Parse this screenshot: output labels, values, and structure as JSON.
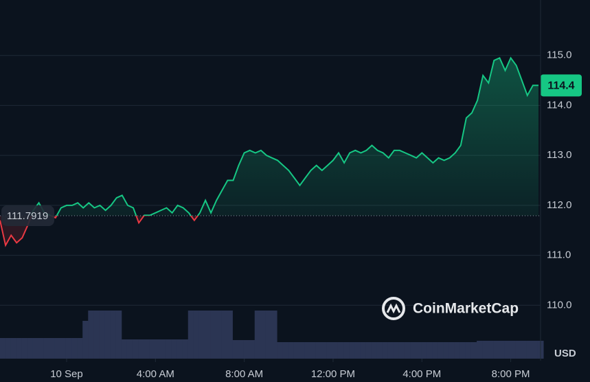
{
  "chart_data": {
    "type": "line",
    "baseline": 111.7919,
    "series": [
      {
        "name": "Price",
        "color_up": "#16c784",
        "color_down": "#ea3943",
        "values": [
          111.7,
          111.2,
          111.4,
          111.25,
          111.35,
          111.6,
          111.9,
          112.05,
          111.85,
          111.8,
          111.75,
          111.95,
          112.0,
          112.0,
          112.05,
          111.95,
          112.05,
          111.95,
          112.0,
          111.9,
          112.0,
          112.15,
          112.2,
          112.0,
          111.95,
          111.65,
          111.8,
          111.8,
          111.85,
          111.9,
          111.95,
          111.85,
          112.0,
          111.95,
          111.85,
          111.7,
          111.85,
          112.1,
          111.85,
          112.1,
          112.3,
          112.5,
          112.5,
          112.8,
          113.05,
          113.1,
          113.05,
          113.1,
          113.0,
          112.95,
          112.9,
          112.8,
          112.7,
          112.55,
          112.4,
          112.55,
          112.7,
          112.8,
          112.7,
          112.8,
          112.9,
          113.05,
          112.85,
          113.05,
          113.1,
          113.05,
          113.1,
          113.2,
          113.1,
          113.05,
          112.95,
          113.1,
          113.1,
          113.05,
          113.0,
          112.95,
          113.05,
          112.95,
          112.85,
          112.95,
          112.9,
          112.95,
          113.05,
          113.2,
          113.75,
          113.85,
          114.1,
          114.6,
          114.45,
          114.9,
          114.95,
          114.7,
          114.95,
          114.8,
          114.5,
          114.2,
          114.4,
          114.4
        ]
      }
    ],
    "volume": {
      "color": "#2b3553",
      "values": [
        30,
        30,
        30,
        30,
        30,
        30,
        30,
        30,
        30,
        30,
        30,
        30,
        30,
        30,
        30,
        55,
        70,
        70,
        70,
        70,
        70,
        70,
        28,
        28,
        28,
        28,
        28,
        28,
        28,
        28,
        28,
        28,
        28,
        28,
        70,
        70,
        70,
        70,
        70,
        70,
        70,
        70,
        27,
        27,
        27,
        27,
        70,
        70,
        70,
        70,
        24,
        24,
        24,
        24,
        24,
        24,
        24,
        24,
        24,
        24,
        24,
        24,
        24,
        24,
        24,
        24,
        24,
        24,
        24,
        24,
        24,
        24,
        24,
        24,
        24,
        24,
        24,
        24,
        24,
        24,
        24,
        24,
        24,
        24,
        24,
        24,
        26,
        26,
        26,
        26,
        26,
        26,
        26,
        26,
        26,
        26,
        26,
        26
      ]
    },
    "volume_lim": [
      0,
      100
    ],
    "xlim": [
      0,
      97
    ],
    "xticks": [
      {
        "value": 12,
        "label": "10 Sep"
      },
      {
        "value": 28,
        "label": "4:00 AM"
      },
      {
        "value": 44,
        "label": "8:00 AM"
      },
      {
        "value": 60,
        "label": "12:00 PM"
      },
      {
        "value": 76,
        "label": "4:00 PM"
      },
      {
        "value": 92,
        "label": "8:00 PM"
      }
    ],
    "ylim": [
      109,
      116.11
    ],
    "yticks": [
      {
        "value": 110,
        "label": "110.0"
      },
      {
        "value": 111,
        "label": "111.0"
      },
      {
        "value": 112,
        "label": "112.0"
      },
      {
        "value": 113,
        "label": "113.0"
      },
      {
        "value": 114,
        "label": "114.0"
      },
      {
        "value": 115,
        "label": "115.0"
      }
    ],
    "grid": true,
    "currency": "USD",
    "watermark": "CoinMarketCap"
  }
}
